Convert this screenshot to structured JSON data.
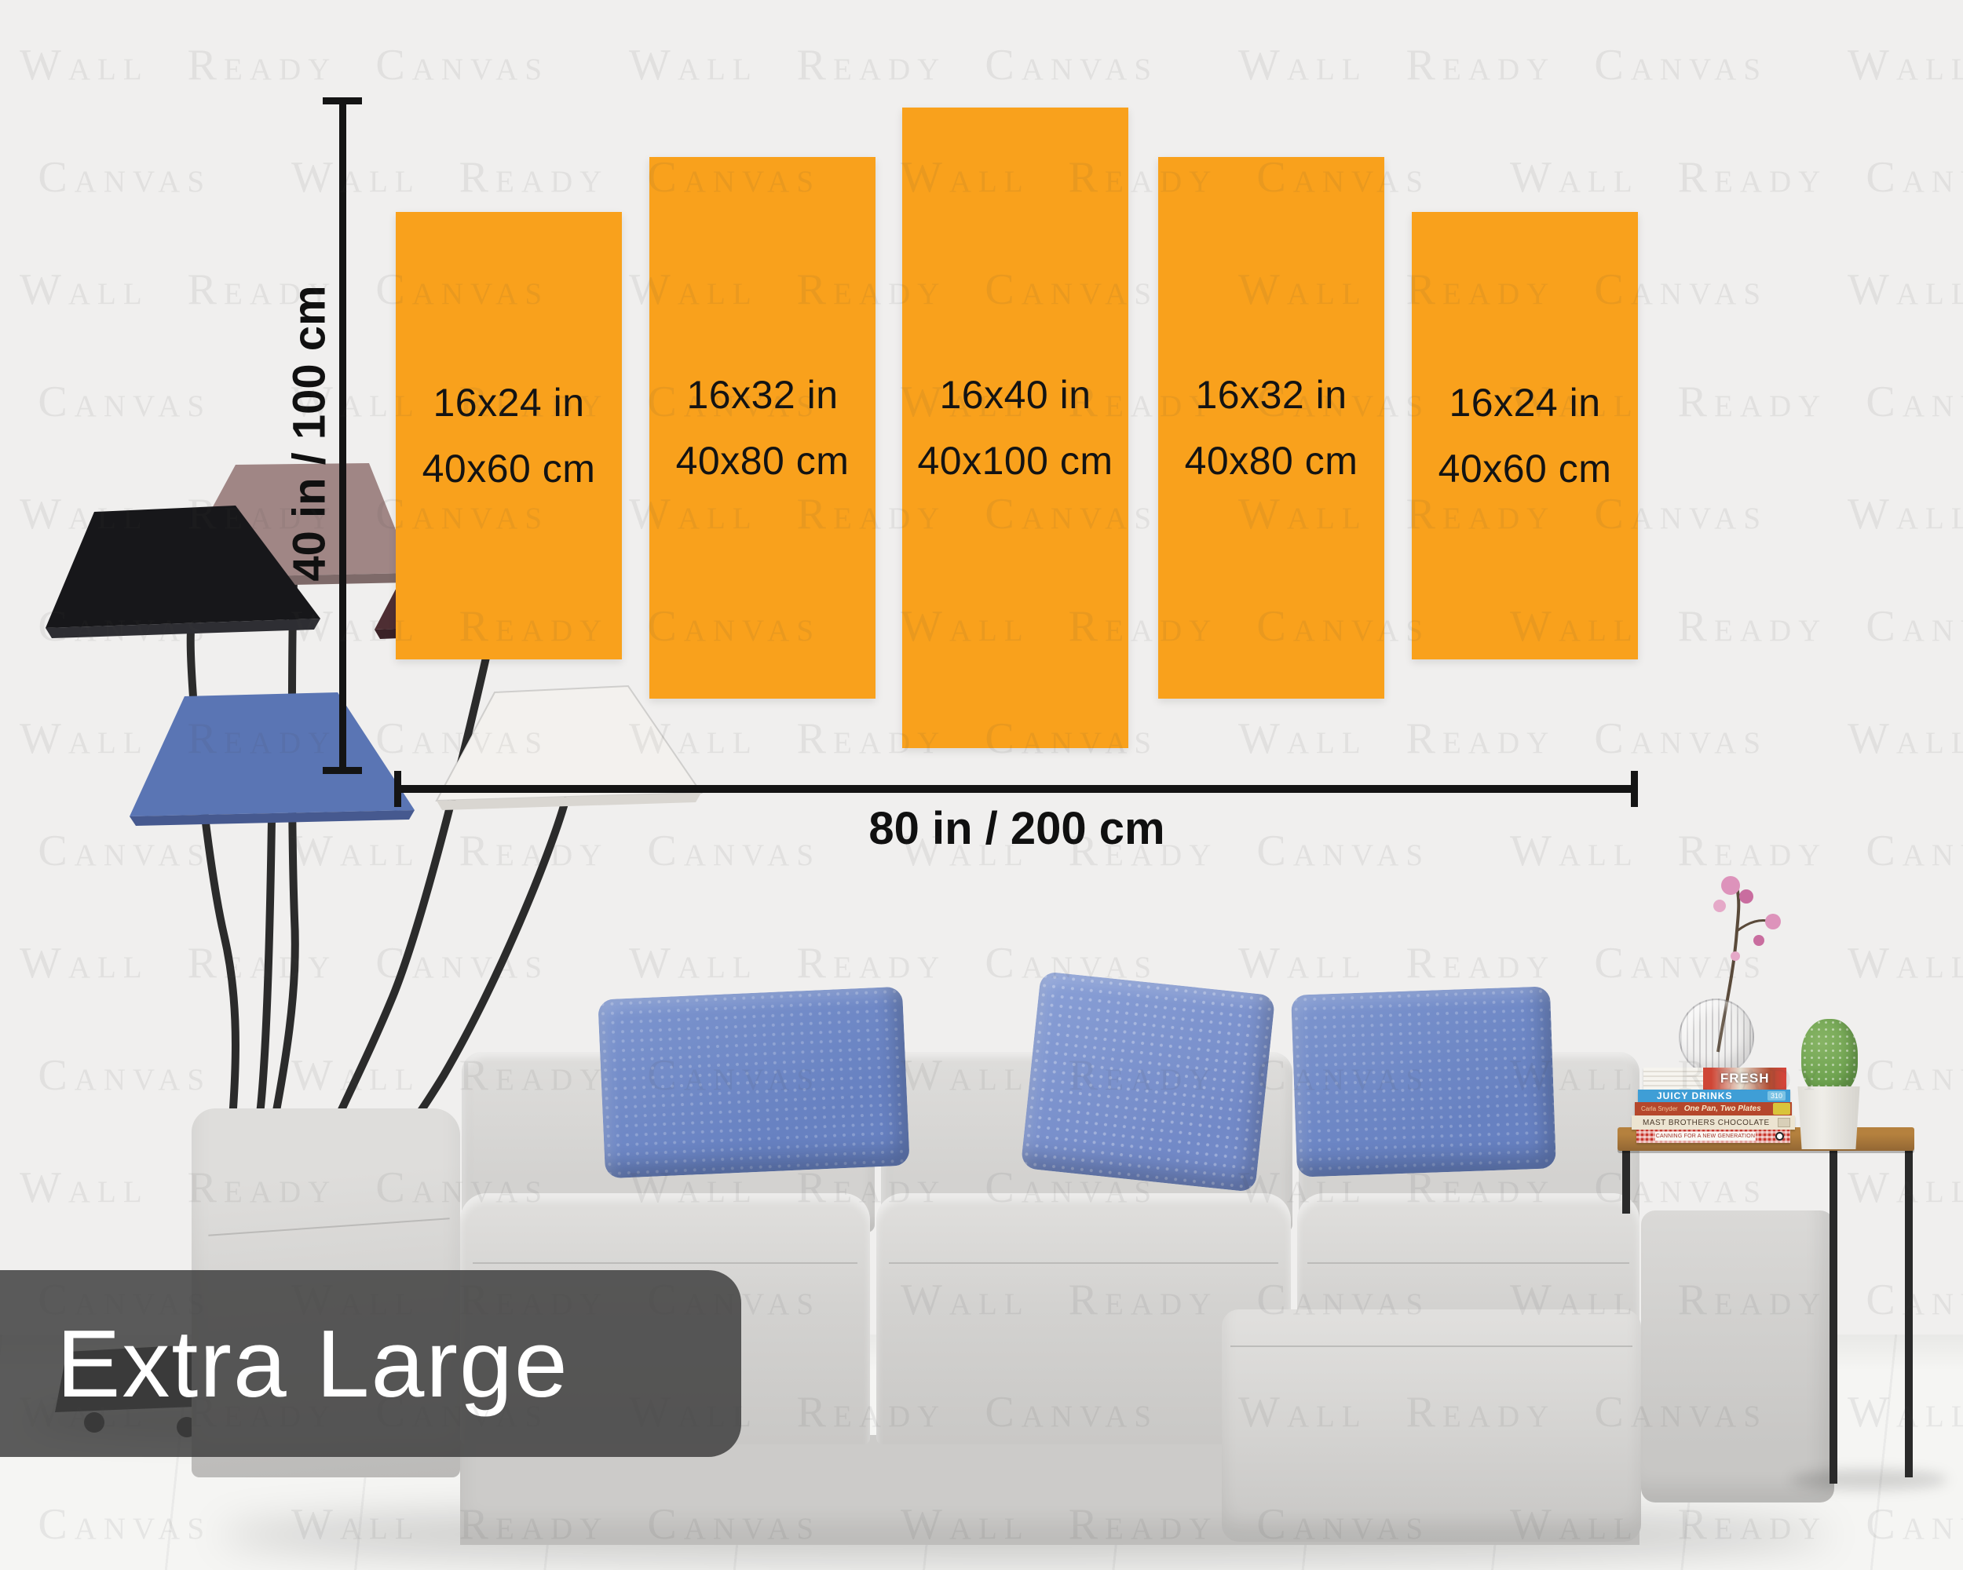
{
  "scene": {
    "watermark": {
      "text": "Wall Ready Canvas",
      "rows": 14,
      "repeats": 5
    },
    "size_label": "Extra Large",
    "dimensions": {
      "height": "40 in / 100 cm",
      "width": "80 in / 200 cm"
    },
    "panels": [
      {
        "line1": "16x24 in",
        "line2": "40x60 cm"
      },
      {
        "line1": "16x32 in",
        "line2": "40x80 cm"
      },
      {
        "line1": "16x40 in",
        "line2": "40x100 cm"
      },
      {
        "line1": "16x32 in",
        "line2": "40x80 cm"
      },
      {
        "line1": "16x24 in",
        "line2": "40x60 cm"
      }
    ],
    "books": [
      {
        "title": "FRESH"
      },
      {
        "title": "JUICY DRINKS",
        "badge": "310"
      },
      {
        "title": "One Pan, Two Plates",
        "author": "Carla Snyder"
      },
      {
        "title": "MAST BROTHERS CHOCOLATE"
      },
      {
        "title": "CANNING FOR A NEW GENERATION"
      }
    ],
    "colors": {
      "orange": "#f9a11c",
      "wall": "#f0efee",
      "floor": "#f5f5f3",
      "overlay": "rgba(64,64,64,0.85)",
      "overlay_text": "#ffffff",
      "watermark": "rgba(70,70,70,0.085)",
      "sofa": "#d3d2d0",
      "sofa_light": "#dedddb",
      "pillow": "#6781c1",
      "pillow_light": "#7e96cf",
      "wood": "#b5813e",
      "metal": "#2a2a2a",
      "shade_black": "#17171a",
      "shade_mauve": "#a08685",
      "shade_maroon": "#4e2e33",
      "shade_white": "#f3f1ee",
      "shade_blue": "#5a75b4",
      "cactus": "#6aa04c",
      "pot": "#efede8",
      "book_blue": "#3f9ed6",
      "book_red": "#b5472c",
      "book_cream": "#ece4d1",
      "flower": "#dd93bb"
    }
  }
}
